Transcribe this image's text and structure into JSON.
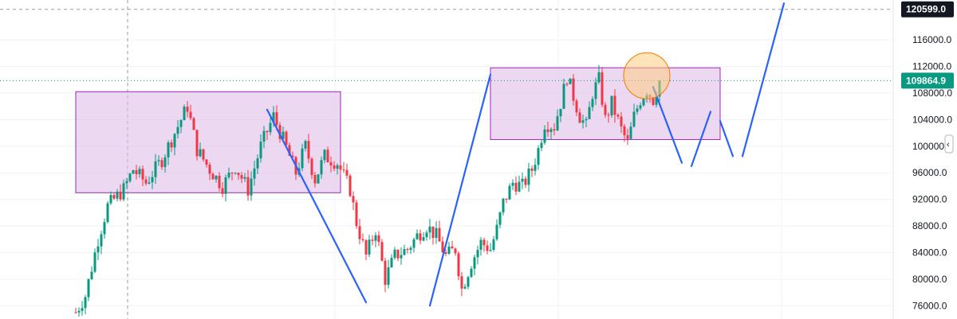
{
  "chart_data": {
    "type": "candlestick",
    "title": "",
    "xlabel": "",
    "ylabel": "",
    "ylim": [
      74000,
      122000
    ],
    "y_ticks": [
      {
        "value": 116000,
        "label": "116000.0"
      },
      {
        "value": 112000,
        "label": "112000.0"
      },
      {
        "value": 108000,
        "label": "108000.0"
      },
      {
        "value": 104000,
        "label": "104000.0"
      },
      {
        "value": 100000,
        "label": "100000.0"
      },
      {
        "value": 96000,
        "label": "96000.0"
      },
      {
        "value": 92000,
        "label": "92000.0"
      },
      {
        "value": 88000,
        "label": "88000.0"
      },
      {
        "value": 84000,
        "label": "84000.0"
      },
      {
        "value": 80000,
        "label": "80000.0"
      },
      {
        "value": 76000,
        "label": "76000.0"
      }
    ],
    "grid": true,
    "current_price": {
      "value": 109864.9,
      "label": "109864.9",
      "color": "#089981"
    },
    "crosshair_price": {
      "value": 120599.0,
      "label": "120599.0",
      "color": "#131722"
    },
    "colors": {
      "up": "#089981",
      "down": "#f23645",
      "box_fill": "#e1bee7",
      "box_stroke": "#9c27b0",
      "trend": "#2962ff",
      "circle_fill": "#ffcc80",
      "circle_stroke": "#f57c00"
    },
    "price_path": [
      {
        "t": 0,
        "p": 75000
      },
      {
        "t": 3,
        "p": 77500
      },
      {
        "t": 7,
        "p": 86000
      },
      {
        "t": 10,
        "p": 91000
      },
      {
        "t": 15,
        "p": 93500
      },
      {
        "t": 18,
        "p": 96500
      },
      {
        "t": 22,
        "p": 94500
      },
      {
        "t": 27,
        "p": 98000
      },
      {
        "t": 30,
        "p": 101000
      },
      {
        "t": 35,
        "p": 106000
      },
      {
        "t": 38,
        "p": 99500
      },
      {
        "t": 42,
        "p": 96500
      },
      {
        "t": 46,
        "p": 94000
      },
      {
        "t": 50,
        "p": 97000
      },
      {
        "t": 54,
        "p": 93500
      },
      {
        "t": 58,
        "p": 100000
      },
      {
        "t": 62,
        "p": 104500
      },
      {
        "t": 65,
        "p": 101000
      },
      {
        "t": 69,
        "p": 96000
      },
      {
        "t": 72,
        "p": 100000
      },
      {
        "t": 75,
        "p": 95000
      },
      {
        "t": 78,
        "p": 98500
      },
      {
        "t": 82,
        "p": 97500
      },
      {
        "t": 86,
        "p": 93500
      },
      {
        "t": 88,
        "p": 88500
      },
      {
        "t": 91,
        "p": 83500
      },
      {
        "t": 94,
        "p": 87500
      },
      {
        "t": 97,
        "p": 80000
      },
      {
        "t": 100,
        "p": 83500
      },
      {
        "t": 104,
        "p": 84500
      },
      {
        "t": 107,
        "p": 86500
      },
      {
        "t": 110,
        "p": 88000
      },
      {
        "t": 113,
        "p": 86500
      },
      {
        "t": 116,
        "p": 83500
      },
      {
        "t": 119,
        "p": 84500
      },
      {
        "t": 121,
        "p": 78500
      },
      {
        "t": 124,
        "p": 82500
      },
      {
        "t": 127,
        "p": 85500
      },
      {
        "t": 130,
        "p": 84500
      },
      {
        "t": 132,
        "p": 87500
      },
      {
        "t": 134,
        "p": 91500
      },
      {
        "t": 137,
        "p": 94500
      },
      {
        "t": 140,
        "p": 94000
      },
      {
        "t": 143,
        "p": 96500
      },
      {
        "t": 145,
        "p": 99500
      },
      {
        "t": 147,
        "p": 103500
      },
      {
        "t": 150,
        "p": 103000
      },
      {
        "t": 152,
        "p": 106500
      },
      {
        "t": 154,
        "p": 110500
      },
      {
        "t": 156,
        "p": 107500
      },
      {
        "t": 158,
        "p": 104500
      },
      {
        "t": 160,
        "p": 103000
      },
      {
        "t": 162,
        "p": 108000
      },
      {
        "t": 164,
        "p": 110000
      },
      {
        "t": 166,
        "p": 104000
      },
      {
        "t": 168,
        "p": 106500
      },
      {
        "t": 171,
        "p": 102500
      },
      {
        "t": 173,
        "p": 100500
      },
      {
        "t": 175,
        "p": 104500
      },
      {
        "t": 177,
        "p": 107000
      },
      {
        "t": 179,
        "p": 108500
      },
      {
        "t": 181,
        "p": 107000
      },
      {
        "t": 183,
        "p": 109900
      }
    ],
    "highlight_boxes": [
      {
        "t_start": 0,
        "t_end": 83,
        "price_low": 93000,
        "price_high": 108200
      },
      {
        "t_start": 130,
        "t_end": 202,
        "price_low": 101000,
        "price_high": 111800
      }
    ],
    "trend_lines": [
      {
        "t0": 60,
        "p0": 105500,
        "t1": 91,
        "p1": 76500
      },
      {
        "t0": 111,
        "p0": 76000,
        "t1": 130,
        "p1": 110800
      },
      {
        "t0": 181,
        "p0": 108900,
        "t1": 190,
        "p1": 97500
      },
      {
        "t0": 193,
        "p0": 97000,
        "t1": 199,
        "p1": 105200
      },
      {
        "t0": 202,
        "p0": 103800,
        "t1": 206,
        "p1": 98500
      },
      {
        "t0": 209,
        "p0": 98500,
        "t1": 222,
        "p1": 121500
      }
    ],
    "highlight_circle": {
      "t": 179,
      "p": 110600
    }
  }
}
